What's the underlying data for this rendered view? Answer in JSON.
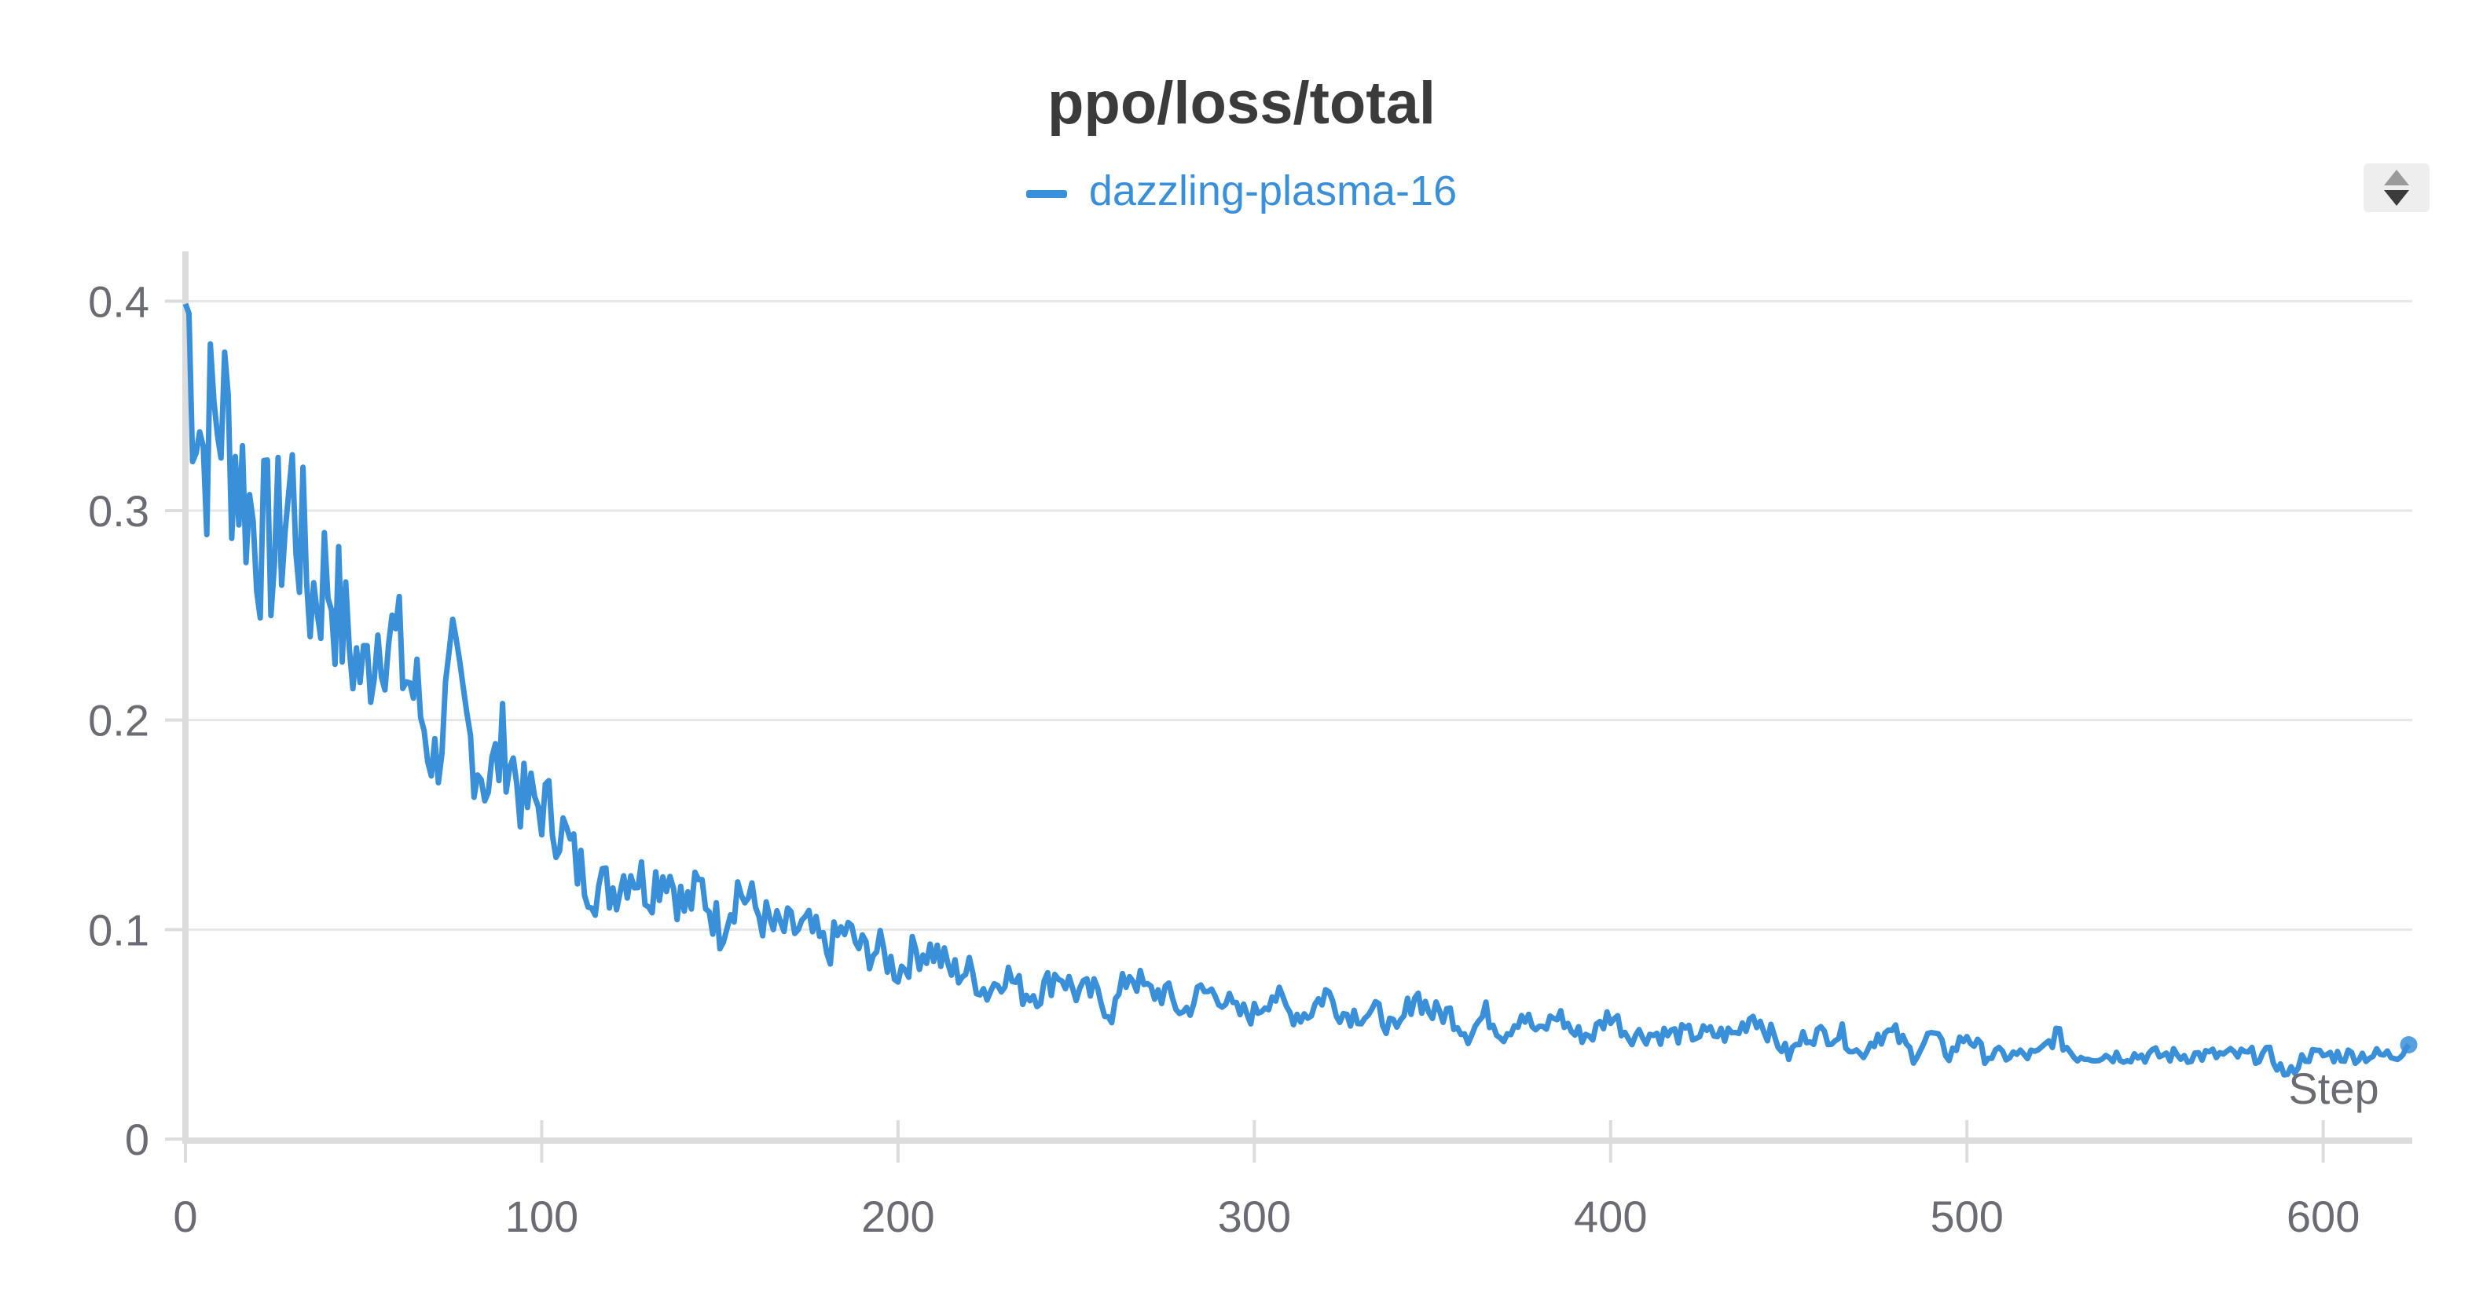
{
  "panel": {
    "title": "ppo/loss/total"
  },
  "colors": {
    "series": "#3a8fd9",
    "grid": "#e6e6e6",
    "axis": "#dcdcdc",
    "tick_text": "#6b6b73",
    "title": "#3b3b3b"
  },
  "chart_data": {
    "type": "line",
    "title": "ppo/loss/total",
    "xlabel": "Step",
    "ylabel": "",
    "xlim": [
      0,
      625
    ],
    "ylim": [
      0,
      0.42
    ],
    "x_ticks": [
      0,
      100,
      200,
      300,
      400,
      500,
      600
    ],
    "x_tick_labels": [
      "0",
      "100",
      "200",
      "300",
      "400",
      "500",
      "600"
    ],
    "y_ticks": [
      0,
      0.1,
      0.2,
      0.3,
      0.4
    ],
    "y_tick_labels": [
      "0",
      "0.1",
      "0.2",
      "0.3",
      "0.4"
    ],
    "grid": true,
    "legend_position": "top-center",
    "series": [
      {
        "name": "dazzling-plasma-16",
        "color": "#3a8fd9",
        "x": [
          0,
          5,
          10,
          15,
          20,
          25,
          30,
          35,
          40,
          45,
          50,
          55,
          60,
          65,
          70,
          75,
          80,
          85,
          90,
          95,
          100,
          105,
          110,
          115,
          120,
          125,
          130,
          135,
          140,
          145,
          150,
          155,
          160,
          165,
          170,
          175,
          180,
          185,
          190,
          195,
          200,
          205,
          210,
          215,
          220,
          225,
          230,
          235,
          240,
          245,
          250,
          255,
          260,
          265,
          270,
          275,
          280,
          285,
          290,
          295,
          300,
          305,
          310,
          315,
          320,
          325,
          330,
          335,
          340,
          345,
          350,
          355,
          360,
          365,
          370,
          375,
          380,
          385,
          390,
          395,
          400,
          405,
          410,
          415,
          420,
          425,
          430,
          435,
          440,
          445,
          450,
          455,
          460,
          465,
          470,
          475,
          480,
          485,
          490,
          495,
          500,
          505,
          510,
          515,
          520,
          525,
          530,
          535,
          540,
          545,
          550,
          555,
          560,
          565,
          570,
          575,
          580,
          585,
          590,
          595,
          600,
          605,
          610,
          615,
          620,
          624
        ],
        "y": [
          0.4,
          0.33,
          0.35,
          0.32,
          0.29,
          0.28,
          0.31,
          0.26,
          0.27,
          0.24,
          0.22,
          0.25,
          0.23,
          0.21,
          0.18,
          0.22,
          0.19,
          0.17,
          0.19,
          0.16,
          0.16,
          0.15,
          0.13,
          0.12,
          0.12,
          0.13,
          0.12,
          0.13,
          0.11,
          0.12,
          0.1,
          0.12,
          0.11,
          0.1,
          0.1,
          0.1,
          0.09,
          0.1,
          0.09,
          0.09,
          0.08,
          0.09,
          0.09,
          0.08,
          0.08,
          0.07,
          0.08,
          0.07,
          0.07,
          0.08,
          0.07,
          0.07,
          0.06,
          0.08,
          0.07,
          0.07,
          0.06,
          0.07,
          0.07,
          0.06,
          0.06,
          0.07,
          0.06,
          0.06,
          0.07,
          0.06,
          0.06,
          0.06,
          0.05,
          0.07,
          0.06,
          0.06,
          0.05,
          0.06,
          0.05,
          0.06,
          0.05,
          0.06,
          0.05,
          0.05,
          0.06,
          0.05,
          0.05,
          0.05,
          0.05,
          0.05,
          0.05,
          0.05,
          0.06,
          0.05,
          0.04,
          0.05,
          0.05,
          0.05,
          0.04,
          0.05,
          0.05,
          0.04,
          0.05,
          0.04,
          0.05,
          0.04,
          0.04,
          0.04,
          0.04,
          0.05,
          0.04,
          0.04,
          0.04,
          0.04,
          0.04,
          0.04,
          0.04,
          0.04,
          0.04,
          0.04,
          0.04,
          0.04,
          0.03,
          0.04,
          0.04,
          0.04,
          0.04,
          0.04,
          0.04,
          0.045
        ]
      }
    ]
  }
}
